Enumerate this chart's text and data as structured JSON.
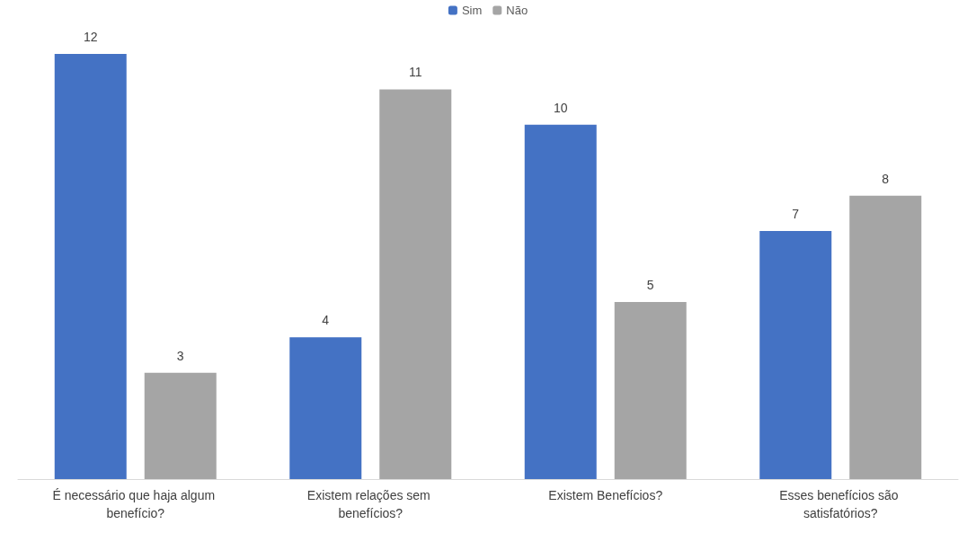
{
  "chart_data": {
    "type": "bar",
    "categories": [
      "É necessário que haja algum benefício?",
      "Existem relações sem benefícios?",
      "Existem Benefícios?",
      "Esses benefícios são satisfatórios?"
    ],
    "series": [
      {
        "name": "Sim",
        "color": "#4472c4",
        "values": [
          12,
          4,
          10,
          7
        ]
      },
      {
        "name": "Não",
        "color": "#a5a5a5",
        "values": [
          3,
          11,
          5,
          8
        ]
      }
    ],
    "data_labels": true,
    "legend": "top"
  }
}
